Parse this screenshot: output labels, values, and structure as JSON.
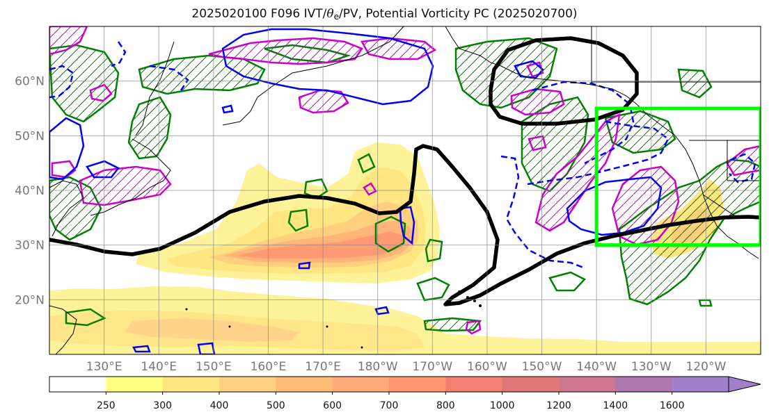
{
  "title": {
    "prefix": "2025020100 F096 IVT/",
    "theta": "θ",
    "theta_sub": "e",
    "suffix": "/PV, Potential Vorticity PC (2025020700)"
  },
  "map": {
    "projection": "PlateCarree",
    "lon_range": [
      120,
      250
    ],
    "lat_range": [
      10,
      70
    ],
    "lat_ticks": [
      {
        "value": 20,
        "label": "20°N"
      },
      {
        "value": 30,
        "label": "30°N"
      },
      {
        "value": 40,
        "label": "40°N"
      },
      {
        "value": 50,
        "label": "50°N"
      },
      {
        "value": 60,
        "label": "60°N"
      }
    ],
    "lon_ticks": [
      {
        "value": 130,
        "label": "130°E"
      },
      {
        "value": 140,
        "label": "140°E"
      },
      {
        "value": 150,
        "label": "150°E"
      },
      {
        "value": 160,
        "label": "160°E"
      },
      {
        "value": 170,
        "label": "170°E"
      },
      {
        "value": 180,
        "label": "180°W"
      },
      {
        "value": 190,
        "label": "170°W"
      },
      {
        "value": 200,
        "label": "160°W"
      },
      {
        "value": 210,
        "label": "150°W"
      },
      {
        "value": 220,
        "label": "140°W"
      },
      {
        "value": 230,
        "label": "130°W"
      },
      {
        "value": 240,
        "label": "120°W"
      }
    ],
    "grid": true,
    "highlight_box": {
      "lon_range": [
        220,
        250
      ],
      "lat_range": [
        30,
        55
      ],
      "color": "#00ff00"
    },
    "contour_colors": {
      "pv_contour": "#000000",
      "positive_anomaly": "#cc00cc",
      "negative_anomaly": "#0000ff",
      "theta_e": "#008000"
    }
  },
  "colorbar": {
    "levels": [
      "250",
      "300",
      "400",
      "500",
      "600",
      "700",
      "800",
      "1000",
      "1200",
      "1400",
      "1600"
    ],
    "colors": [
      "#ffffff",
      "#ffff80",
      "#ffe680",
      "#ffd080",
      "#ffbe78",
      "#ffaa78",
      "#ff9670",
      "#f08070",
      "#e07878",
      "#d07890",
      "#b078b0",
      "#a080c8"
    ],
    "extend": "max"
  }
}
